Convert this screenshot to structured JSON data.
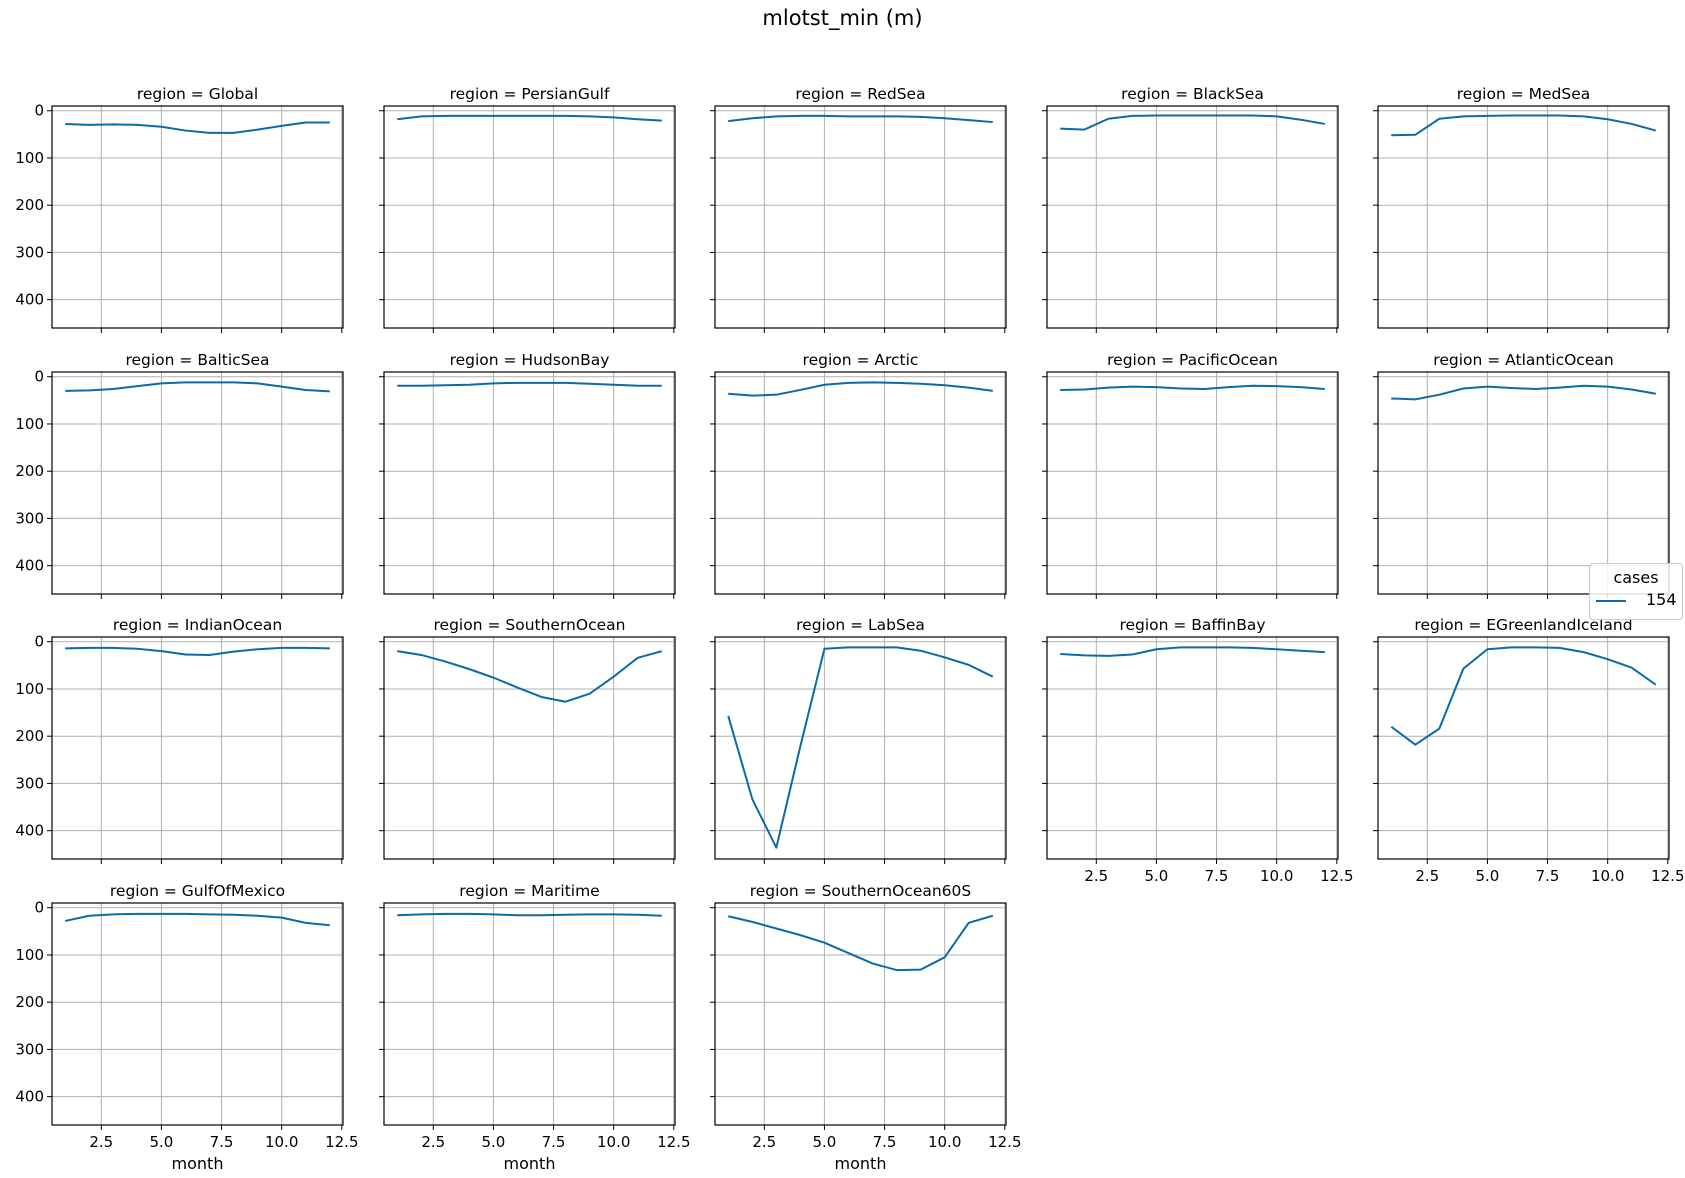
{
  "title": "mlotst_min (m)",
  "legend": {
    "title": "cases",
    "entries": [
      "154"
    ]
  },
  "colors": {
    "line": "#0b6aa7",
    "grid": "#b0b0b0",
    "axes": "#000000"
  },
  "chart_data": {
    "type": "line",
    "layout": "small-multiples",
    "suptitle": "mlotst_min (m)",
    "xlabel": "month",
    "xlim": [
      0.45,
      12.55
    ],
    "ylim": [
      460,
      -10
    ],
    "y_inverted": true,
    "xticks": [
      2.5,
      5.0,
      7.5,
      10.0,
      12.5
    ],
    "xtick_labels": [
      "2.5",
      "5.0",
      "7.5",
      "10.0",
      "12.5"
    ],
    "yticks": [
      0,
      100,
      200,
      300,
      400
    ],
    "ytick_labels": [
      "0",
      "100",
      "200",
      "300",
      "400"
    ],
    "grid": true,
    "legend_position": "right",
    "x": [
      1,
      2,
      3,
      4,
      5,
      6,
      7,
      8,
      9,
      10,
      11,
      12
    ],
    "panels": [
      {
        "title": "region = Global",
        "values": [
          28,
          30,
          29,
          30,
          34,
          42,
          47,
          47,
          40,
          32,
          25,
          25
        ]
      },
      {
        "title": "region = PersianGulf",
        "values": [
          18,
          12,
          11,
          11,
          11,
          11,
          11,
          11,
          12,
          14,
          18,
          21
        ]
      },
      {
        "title": "region = RedSea",
        "values": [
          22,
          16,
          12,
          11,
          11,
          12,
          12,
          12,
          13,
          16,
          20,
          24
        ]
      },
      {
        "title": "region = BlackSea",
        "values": [
          38,
          40,
          17,
          11,
          10,
          10,
          10,
          10,
          10,
          12,
          19,
          28
        ]
      },
      {
        "title": "region = MedSea",
        "values": [
          52,
          51,
          17,
          12,
          11,
          10,
          10,
          10,
          12,
          18,
          28,
          42
        ]
      },
      {
        "title": "region = BalticSea",
        "values": [
          30,
          29,
          26,
          20,
          14,
          12,
          12,
          12,
          14,
          21,
          28,
          31
        ]
      },
      {
        "title": "region = HudsonBay",
        "values": [
          19,
          19,
          18,
          17,
          14,
          13,
          13,
          13,
          15,
          17,
          19,
          19
        ]
      },
      {
        "title": "region = Arctic",
        "values": [
          36,
          40,
          38,
          28,
          17,
          13,
          12,
          13,
          15,
          18,
          23,
          30
        ]
      },
      {
        "title": "region = PacificOcean",
        "values": [
          28,
          27,
          23,
          21,
          22,
          25,
          26,
          22,
          19,
          20,
          22,
          26
        ]
      },
      {
        "title": "region = AtlanticOcean",
        "values": [
          46,
          48,
          38,
          25,
          21,
          24,
          26,
          23,
          19,
          21,
          27,
          36
        ]
      },
      {
        "title": "region = IndianOcean",
        "values": [
          14,
          13,
          13,
          15,
          20,
          27,
          28,
          21,
          16,
          13,
          13,
          14
        ]
      },
      {
        "title": "region = SouthernOcean",
        "values": [
          20,
          28,
          42,
          58,
          76,
          97,
          117,
          127,
          110,
          74,
          34,
          20
        ]
      },
      {
        "title": "region = LabSea",
        "values": [
          157,
          333,
          436,
          221,
          15,
          12,
          12,
          12,
          19,
          33,
          49,
          74
        ]
      },
      {
        "title": "region = BaffinBay",
        "values": [
          26,
          29,
          30,
          27,
          16,
          12,
          12,
          12,
          13,
          16,
          19,
          22
        ]
      },
      {
        "title": "region = EGreenlandIceland",
        "values": [
          180,
          218,
          184,
          57,
          16,
          12,
          12,
          13,
          22,
          37,
          55,
          91
        ]
      },
      {
        "title": "region = GulfOfMexico",
        "values": [
          28,
          17,
          14,
          13,
          13,
          13,
          14,
          15,
          17,
          21,
          32,
          37
        ]
      },
      {
        "title": "region = Maritime",
        "values": [
          16,
          14,
          13,
          13,
          14,
          16,
          16,
          15,
          14,
          14,
          15,
          17
        ]
      },
      {
        "title": "region = SouthernOcean60S",
        "values": [
          18,
          30,
          44,
          58,
          74,
          96,
          118,
          132,
          131,
          105,
          32,
          17
        ]
      }
    ]
  }
}
